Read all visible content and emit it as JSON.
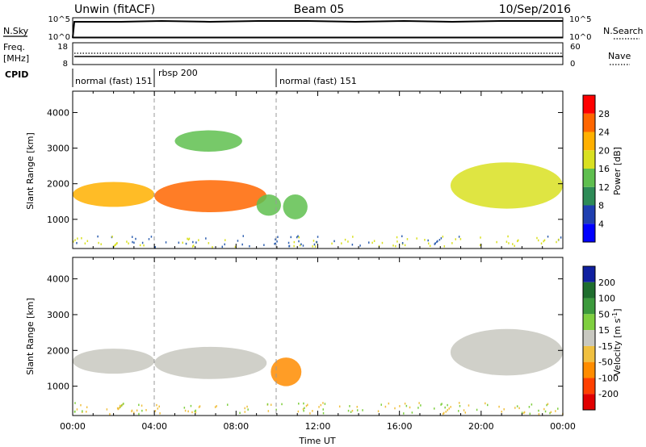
{
  "header": {
    "radar": "Unwin (fitACF)",
    "beam": "Beam 05",
    "date": "10/Sep/2016"
  },
  "noise_panel": {
    "left_label": "N.Sky",
    "right_label": "N.Search",
    "left_ticks": [
      "10^5",
      "10^0"
    ],
    "right_ticks": [
      "10^5",
      "10^0"
    ]
  },
  "freq_panel": {
    "left_label_1": "Freq.",
    "left_label_2": "[MHz]",
    "right_label": "Nave",
    "left_ticks": [
      "18",
      "8"
    ],
    "right_ticks": [
      "60",
      "0"
    ]
  },
  "cpid": {
    "label": "CPID",
    "segments": [
      {
        "start_hour": 0,
        "end_hour": 4,
        "name": "normal (fast) 151"
      },
      {
        "start_hour": 4,
        "end_hour": 10,
        "name": "rbsp 200"
      },
      {
        "start_hour": 10,
        "end_hour": 24,
        "name": "normal (fast) 151"
      }
    ]
  },
  "chart_data": [
    {
      "type": "heatmap",
      "title": "Power",
      "ylabel": "Slant Range [km]",
      "xlim": [
        0,
        24
      ],
      "ylim": [
        180,
        4600
      ],
      "yticks": [
        "1000",
        "2000",
        "3000",
        "4000"
      ],
      "colorbar": {
        "label": "Power [dB]",
        "range": [
          0,
          32
        ],
        "ticks": [
          "4",
          "8",
          "12",
          "16",
          "20",
          "24",
          "28"
        ],
        "colors": [
          "#0000ff",
          "#1f3fb0",
          "#2e8b57",
          "#5fbf4f",
          "#d9e021",
          "#ffb000",
          "#ff6600",
          "#ff0000"
        ]
      },
      "regions": [
        {
          "t0": 0.0,
          "t1": 4.0,
          "r0": 1350,
          "r1": 2050,
          "level": 20
        },
        {
          "t0": 4.0,
          "t1": 9.5,
          "r0": 1200,
          "r1": 2100,
          "level": 24
        },
        {
          "t0": 5.0,
          "t1": 8.3,
          "r0": 2900,
          "r1": 3500,
          "level": 14
        },
        {
          "t0": 9.0,
          "t1": 10.2,
          "r0": 1100,
          "r1": 1700,
          "level": 14
        },
        {
          "t0": 10.3,
          "t1": 11.5,
          "r0": 1000,
          "r1": 1700,
          "level": 12
        },
        {
          "t0": 18.5,
          "t1": 24.0,
          "r0": 1300,
          "r1": 2600,
          "level": 16
        }
      ]
    },
    {
      "type": "heatmap",
      "title": "Velocity",
      "xlabel": "Time UT",
      "ylabel": "Slant Range [km]",
      "xlim": [
        0,
        24
      ],
      "ylim": [
        180,
        4600
      ],
      "xticks": [
        "00:00",
        "04:00",
        "08:00",
        "12:00",
        "16:00",
        "20:00",
        "00:00"
      ],
      "yticks": [
        "1000",
        "2000",
        "3000",
        "4000"
      ],
      "colorbar": {
        "label": "Velocity [m s^-1]",
        "ticks": [
          "200",
          "100",
          "50",
          "15",
          "-15",
          "-50",
          "-100",
          "-200"
        ],
        "colors": [
          "#1020a0",
          "#1f6e2e",
          "#3c9a3c",
          "#7fcf3f",
          "#c8c8c0",
          "#f0c040",
          "#ff8c00",
          "#ff4000",
          "#e00000"
        ]
      },
      "regions": [
        {
          "t0": 0.0,
          "t1": 4.0,
          "r0": 1350,
          "r1": 2050,
          "level": 0
        },
        {
          "t0": 4.0,
          "t1": 9.5,
          "r0": 1200,
          "r1": 2100,
          "level": 0
        },
        {
          "t0": 9.7,
          "t1": 11.2,
          "r0": 1000,
          "r1": 1800,
          "level": -80
        },
        {
          "t0": 18.5,
          "t1": 24.0,
          "r0": 1300,
          "r1": 2600,
          "level": 0
        }
      ]
    }
  ]
}
